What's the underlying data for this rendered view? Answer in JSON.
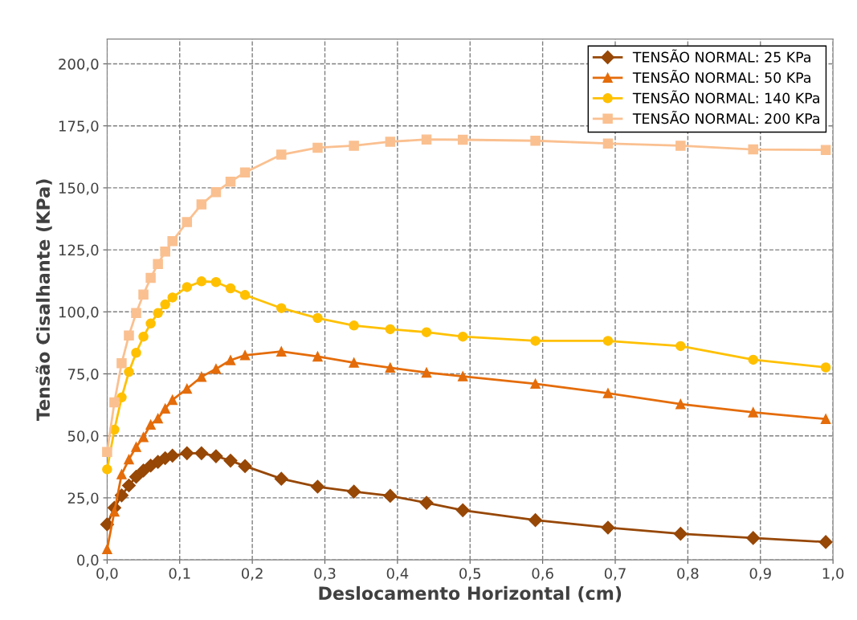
{
  "chart_data": {
    "type": "line",
    "xlabel": "Deslocamento Horizontal (cm)",
    "ylabel": "Tensão Cisalhante (KPa)",
    "x": [
      0,
      0.01,
      0.02,
      0.03,
      0.04,
      0.05,
      0.06,
      0.07,
      0.08,
      0.09,
      0.11,
      0.13,
      0.15,
      0.17,
      0.19,
      0.24,
      0.29,
      0.34,
      0.39,
      0.44,
      0.49,
      0.59,
      0.69,
      0.79,
      0.89,
      0.99
    ],
    "series": [
      {
        "name": "TENSÃO NORMAL: 25 KPa",
        "color": "#974706",
        "marker": "diamond",
        "values": [
          14.3,
          21,
          26,
          30,
          33.5,
          36,
          38,
          39.5,
          41,
          42,
          43,
          43,
          41.8,
          40,
          37.8,
          32.7,
          29.5,
          27.5,
          25.8,
          23,
          20,
          16,
          13,
          10.5,
          8.8,
          7.2
        ]
      },
      {
        "name": "TENSÃO NORMAL: 50 KPa",
        "color": "#e46c0a",
        "marker": "triangle",
        "values": [
          4.3,
          19.5,
          34.5,
          40.5,
          45.5,
          49.5,
          54.5,
          57,
          61,
          64.5,
          69,
          73.8,
          77,
          80.5,
          82.5,
          84,
          82,
          79.5,
          77.5,
          75.5,
          74,
          71,
          67.2,
          62.8,
          59.5,
          56.8
        ]
      },
      {
        "name": "TENSÃO NORMAL: 140 KPa",
        "color": "#ffc000",
        "marker": "circle",
        "values": [
          36.5,
          52.5,
          65.5,
          75.8,
          83.5,
          90,
          95.3,
          99.5,
          103,
          105.8,
          110,
          112.3,
          112,
          109.5,
          106.8,
          101.5,
          97.5,
          94.5,
          93,
          91.8,
          90,
          88.3,
          88.3,
          86.2,
          80.7,
          77.6
        ]
      },
      {
        "name": "TENSÃO NORMAL: 200 KPa",
        "color": "#fac090",
        "marker": "square",
        "values": [
          43.5,
          63.5,
          79.3,
          90.5,
          99.5,
          107,
          113.7,
          119.3,
          124.3,
          128.5,
          136.2,
          143.3,
          148.3,
          152.5,
          156.2,
          163.4,
          166.2,
          167,
          168.6,
          169.5,
          169.4,
          169,
          167.9,
          167,
          165.5,
          165.3
        ]
      }
    ],
    "xlim": [
      0,
      1.0
    ],
    "ylim": [
      0,
      210
    ],
    "xticks": [
      {
        "value": 0,
        "label": "0,0"
      },
      {
        "value": 0.1,
        "label": "0,1"
      },
      {
        "value": 0.2,
        "label": "0,2"
      },
      {
        "value": 0.3,
        "label": "0,3"
      },
      {
        "value": 0.4,
        "label": "0,4"
      },
      {
        "value": 0.5,
        "label": "0,5"
      },
      {
        "value": 0.6,
        "label": "0,6"
      },
      {
        "value": 0.7,
        "label": "0,7"
      },
      {
        "value": 0.8,
        "label": "0,8"
      },
      {
        "value": 0.9,
        "label": "0,9"
      },
      {
        "value": 1.0,
        "label": "1,0"
      }
    ],
    "yticks": [
      {
        "value": 0,
        "label": "0,0"
      },
      {
        "value": 25,
        "label": "25,0"
      },
      {
        "value": 50,
        "label": "50,0"
      },
      {
        "value": 75,
        "label": "75,0"
      },
      {
        "value": 100,
        "label": "100,0"
      },
      {
        "value": 125,
        "label": "125,0"
      },
      {
        "value": 150,
        "label": "150,0"
      },
      {
        "value": 175,
        "label": "175,0"
      },
      {
        "value": 200,
        "label": "200,0"
      }
    ],
    "grid": true,
    "legend": "top right",
    "line_style": "solid"
  }
}
